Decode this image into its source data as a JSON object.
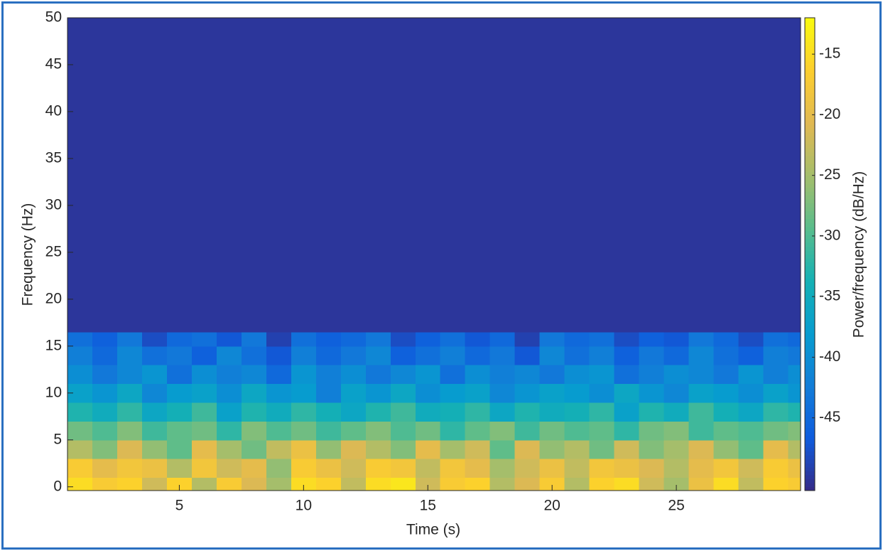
{
  "chart_data": {
    "type": "heatmap",
    "x_label": "Time (s)",
    "y_label": "Frequency (Hz)",
    "colorbar_label": "Power/frequency (dB/Hz)",
    "colormap": "parula",
    "xlim": [
      0.5,
      30
    ],
    "ylim": [
      -0.4,
      50
    ],
    "clim": [
      -51,
      -12
    ],
    "xticks": [
      5,
      10,
      15,
      20,
      25
    ],
    "yticks": [
      0,
      5,
      10,
      15,
      20,
      25,
      30,
      35,
      40,
      45,
      50
    ],
    "cticks": [
      -45,
      -40,
      -35,
      -30,
      -25,
      -20,
      -15
    ],
    "x_bins": [
      0.5,
      1.5,
      2.5,
      3.5,
      4.5,
      5.5,
      6.5,
      7.5,
      8.5,
      9.5,
      10.5,
      11.5,
      12.5,
      13.5,
      14.5,
      15.5,
      16.5,
      17.5,
      18.5,
      19.5,
      20.5,
      21.5,
      22.5,
      23.5,
      24.5,
      25.5,
      26.5,
      27.5,
      28.5,
      29.5,
      30
    ],
    "y_bins": [
      -0.4,
      1,
      3,
      5,
      7,
      9,
      11,
      13,
      15,
      16.5,
      50
    ],
    "values": [
      [
        -15,
        -17,
        -16,
        -22,
        -16,
        -24,
        -17,
        -21,
        -25,
        -15,
        -16,
        -23,
        -15,
        -14,
        -22,
        -17,
        -16,
        -24,
        -21,
        -17,
        -24,
        -16,
        -15,
        -22,
        -25,
        -19,
        -15,
        -23,
        -16,
        -17
      ],
      [
        -17,
        -20,
        -18,
        -19,
        -24,
        -18,
        -22,
        -20,
        -26,
        -17,
        -19,
        -22,
        -17,
        -18,
        -23,
        -18,
        -20,
        -25,
        -22,
        -19,
        -23,
        -18,
        -19,
        -21,
        -24,
        -20,
        -18,
        -22,
        -17,
        -19
      ],
      [
        -24,
        -27,
        -21,
        -26,
        -29,
        -20,
        -25,
        -28,
        -23,
        -19,
        -26,
        -21,
        -24,
        -27,
        -20,
        -25,
        -22,
        -29,
        -21,
        -26,
        -24,
        -28,
        -22,
        -27,
        -25,
        -21,
        -26,
        -29,
        -20,
        -24
      ],
      [
        -28,
        -30,
        -27,
        -31,
        -29,
        -28,
        -32,
        -27,
        -30,
        -28,
        -31,
        -29,
        -27,
        -30,
        -28,
        -32,
        -29,
        -27,
        -31,
        -28,
        -30,
        -29,
        -32,
        -28,
        -27,
        -31,
        -29,
        -30,
        -28,
        -27
      ],
      [
        -33,
        -35,
        -32,
        -36,
        -34,
        -31,
        -37,
        -33,
        -35,
        -32,
        -34,
        -36,
        -33,
        -31,
        -35,
        -34,
        -32,
        -36,
        -33,
        -35,
        -34,
        -32,
        -37,
        -33,
        -35,
        -31,
        -34,
        -36,
        -32,
        -33
      ],
      [
        -37,
        -39,
        -36,
        -41,
        -38,
        -37,
        -40,
        -36,
        -39,
        -38,
        -42,
        -37,
        -39,
        -36,
        -40,
        -38,
        -37,
        -41,
        -39,
        -37,
        -38,
        -40,
        -36,
        -39,
        -41,
        -37,
        -38,
        -40,
        -37,
        -39
      ],
      [
        -40,
        -43,
        -41,
        -39,
        -44,
        -40,
        -42,
        -41,
        -45,
        -39,
        -42,
        -40,
        -43,
        -41,
        -39,
        -44,
        -40,
        -42,
        -41,
        -43,
        -40,
        -39,
        -44,
        -42,
        -40,
        -41,
        -43,
        -39,
        -42,
        -40
      ],
      [
        -42,
        -45,
        -41,
        -44,
        -43,
        -46,
        -41,
        -44,
        -47,
        -42,
        -45,
        -43,
        -41,
        -46,
        -44,
        -42,
        -45,
        -43,
        -47,
        -41,
        -44,
        -42,
        -46,
        -43,
        -45,
        -41,
        -44,
        -46,
        -42,
        -43
      ],
      [
        -44,
        -46,
        -43,
        -48,
        -45,
        -44,
        -47,
        -43,
        -49,
        -44,
        -46,
        -45,
        -43,
        -48,
        -46,
        -44,
        -47,
        -45,
        -49,
        -43,
        -45,
        -44,
        -48,
        -46,
        -47,
        -43,
        -45,
        -48,
        -44,
        -45
      ],
      [
        -50,
        -50,
        -50,
        -50,
        -50,
        -50,
        -50,
        -50,
        -50,
        -50,
        -50,
        -50,
        -50,
        -50,
        -50,
        -50,
        -50,
        -50,
        -50,
        -50,
        -50,
        -50,
        -50,
        -50,
        -50,
        -50,
        -50,
        -50,
        -50,
        -50
      ]
    ]
  }
}
